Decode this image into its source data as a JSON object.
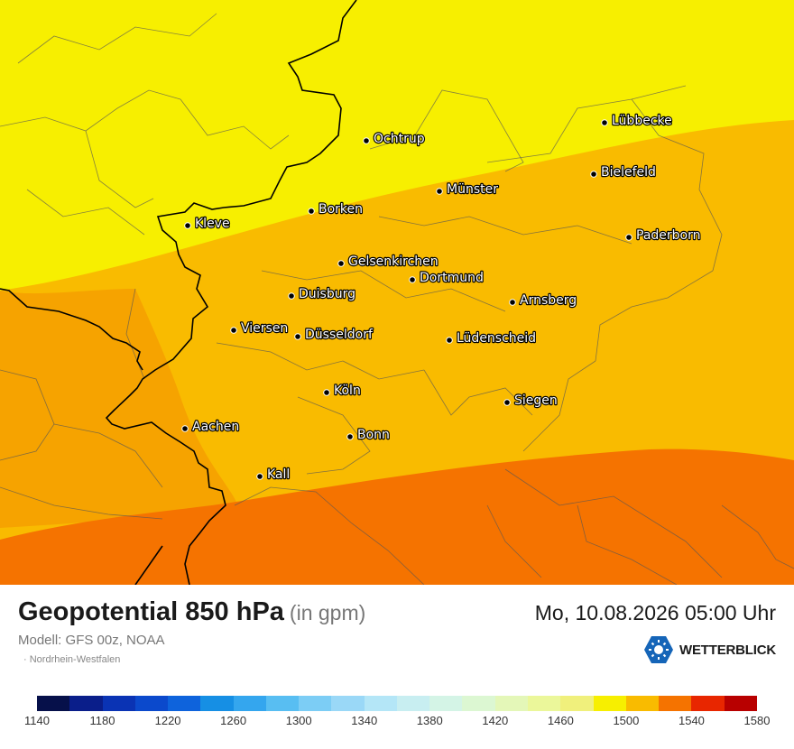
{
  "map": {
    "cities": [
      {
        "name": "Lübbecke"
      },
      {
        "name": "Ochtrup"
      },
      {
        "name": "Bielefeld"
      },
      {
        "name": "Münster"
      },
      {
        "name": "Kleve"
      },
      {
        "name": "Borken"
      },
      {
        "name": "Paderborn"
      },
      {
        "name": "Gelsenkirchen"
      },
      {
        "name": "Dortmund"
      },
      {
        "name": "Duisburg"
      },
      {
        "name": "Arnsberg"
      },
      {
        "name": "Viersen"
      },
      {
        "name": "Düsseldorf"
      },
      {
        "name": "Lüdenscheid"
      },
      {
        "name": "Köln"
      },
      {
        "name": "Siegen"
      },
      {
        "name": "Aachen"
      },
      {
        "name": "Bonn"
      },
      {
        "name": "Kall"
      }
    ],
    "band_colors": {
      "b1500": "#f7ef00",
      "b1520": "#f9bb00",
      "b1540": "#f6a300",
      "b1560": "#f57300"
    }
  },
  "footer": {
    "title": "Geopotential 850 hPa",
    "unit": "(in gpm)",
    "datetime": "Mo, 10.08.2026 05:00 Uhr",
    "model": "Modell: GFS 00z, NOAA",
    "region": "Nordrhein-Westfalen",
    "brand": "WETTERBLICK"
  },
  "legend": {
    "colors": [
      "#06104a",
      "#0a1e8a",
      "#0a33b4",
      "#0b49cc",
      "#0e63dc",
      "#168fe4",
      "#34a6ee",
      "#58bef2",
      "#7ccdf5",
      "#9ad8f7",
      "#b4e6f7",
      "#c8eef1",
      "#d4f4e6",
      "#dcf7d2",
      "#e4f7b8",
      "#ebf79a",
      "#f0f07c",
      "#f7ef00",
      "#f9bb00",
      "#f57300",
      "#e82600",
      "#b80000"
    ],
    "ticks": [
      "1140",
      "1180",
      "1220",
      "1260",
      "1300",
      "1340",
      "1380",
      "1420",
      "1460",
      "1500",
      "1540",
      "1580"
    ]
  }
}
